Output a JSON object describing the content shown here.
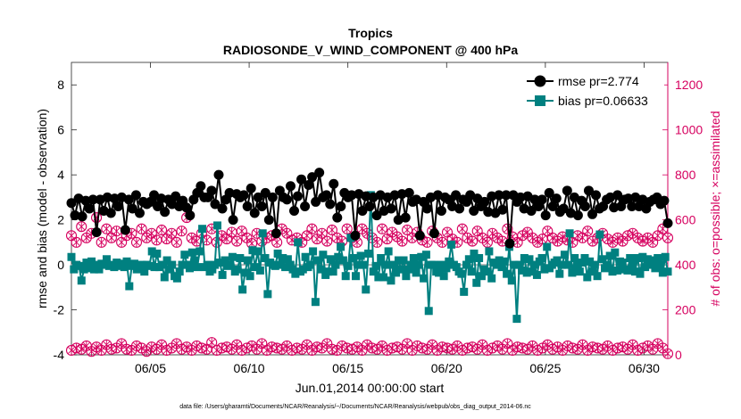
{
  "chart_data": {
    "type": "line",
    "title": "Tropics",
    "subtitle": "RADIOSONDE_V_WIND_COMPONENT @ 400 hPa",
    "xlabel": "Jun.01,2014 00:00:00 start",
    "ylabel": "rmse and bias (model - observation)",
    "y2label": "# of obs: o=possible; ×=assimilated",
    "footnote": "data file: /Users/gharamti/Documents/NCAR/Reanalysis/~/Documents/NCAR/Reanalysis/webpub/obs_diag_output_2014-06.nc",
    "xlim": [
      1.0,
      31.2
    ],
    "ylim": [
      -4,
      9
    ],
    "y2lim": [
      0,
      1300
    ],
    "x_ticks": [
      5,
      10,
      15,
      20,
      25,
      30
    ],
    "x_tick_labels": [
      "06/05",
      "06/10",
      "06/15",
      "06/20",
      "06/25",
      "06/30"
    ],
    "y_ticks": [
      -4,
      -2,
      0,
      2,
      4,
      6,
      8
    ],
    "y_tick_labels": [
      "-4",
      "-2",
      "0",
      "2",
      "4",
      "6",
      "8"
    ],
    "y2_ticks": [
      0,
      200,
      400,
      600,
      800,
      1000,
      1200
    ],
    "y2_tick_labels": [
      "0",
      "200",
      "400",
      "600",
      "800",
      "1000",
      "1200"
    ],
    "legend": [
      "rmse pr=2.774",
      "bias pr=0.06633"
    ],
    "legend_position": "top-right",
    "colors": {
      "rmse": "#000000",
      "bias": "#008080",
      "counts": "#d6005f",
      "zero_line": "#b3b3b3"
    },
    "series": [
      {
        "name": "rmse",
        "values": [
          2.75,
          2.2,
          2.95,
          2.15,
          2.85,
          2.5,
          2.9,
          1.45,
          2.9,
          2.4,
          3.0,
          2.3,
          2.95,
          2.6,
          3.0,
          1.55,
          2.9,
          2.5,
          3.1,
          2.3,
          2.8,
          2.7,
          2.8,
          3.1,
          2.6,
          2.95,
          2.35,
          2.9,
          2.7,
          3.05,
          2.6,
          2.85,
          2.55,
          2.2,
          2.9,
          3.2,
          3.5,
          3.0,
          3.0,
          3.3,
          2.7,
          4.0,
          2.5,
          2.9,
          3.2,
          2.0,
          3.15,
          3.0,
          3.1,
          2.6,
          3.4,
          2.3,
          3.0,
          2.6,
          3.2,
          2.0,
          3.0,
          1.4,
          3.3,
          3.0,
          2.9,
          3.5,
          2.4,
          3.05,
          3.8,
          2.6,
          3.55,
          3.9,
          2.8,
          4.1,
          3.0,
          3.1,
          2.7,
          3.6,
          2.1,
          2.6,
          3.2,
          3.0,
          3.1,
          1.3,
          3.15,
          2.4,
          3.05,
          2.6,
          3.0,
          2.2,
          3.1,
          2.4,
          3.0,
          2.5,
          3.1,
          2.0,
          3.15,
          2.1,
          3.2,
          2.8,
          2.9,
          1.3,
          2.8,
          2.5,
          3.0,
          1.4,
          3.1,
          2.4,
          3.0,
          2.9,
          2.6,
          3.1,
          2.5,
          2.9,
          2.8,
          3.1,
          2.4,
          2.95,
          2.6,
          2.8,
          2.35,
          3.05,
          2.3,
          3.1,
          2.45,
          3.1,
          0.95,
          3.1,
          2.8,
          3.0,
          2.5,
          3.05,
          2.4,
          2.9,
          2.6,
          2.9,
          2.2,
          3.2,
          2.6,
          2.95,
          2.35,
          2.5,
          3.3,
          2.3,
          3.0,
          2.2,
          2.85,
          2.6,
          3.3,
          2.25,
          3.1,
          2.5,
          2.6,
          2.9,
          3.0,
          2.55,
          3.1,
          2.6,
          2.9,
          2.95,
          2.6,
          3.0,
          2.6,
          2.9,
          2.5,
          2.8,
          2.9,
          3.0,
          2.7,
          2.85,
          1.85
        ]
      },
      {
        "name": "bias",
        "values": [
          0.35,
          -0.2,
          0.0,
          -0.05,
          -0.7,
          -0.2,
          0.1,
          -0.15,
          0.15,
          -0.2,
          0.0,
          -0.2,
          0.05,
          0.0,
          0.25,
          -0.05,
          0.0,
          -0.1,
          0.1,
          -0.05,
          0.05,
          -0.1,
          0.15,
          -0.95,
          -0.05,
          0.05,
          -0.2,
          -0.1,
          0.0,
          -0.3,
          0.0,
          -0.05,
          0.6,
          -0.1,
          0.5,
          -0.1,
          0.0,
          -0.55,
          0.2,
          -0.2,
          0.0,
          -0.5,
          -0.6,
          -0.3,
          0.0,
          0.45,
          0.0,
          -0.15,
          0.55,
          0.2,
          -0.1,
          0.6,
          1.6,
          -0.1,
          0.0,
          -0.3,
          -0.2,
          0.0,
          1.75,
          0.1,
          -0.45,
          0.2,
          -0.05,
          0.0,
          0.35,
          -0.3,
          -0.2,
          0.3,
          -1.1,
          -0.35,
          0.2,
          -0.5,
          0.65,
          -0.1,
          0.6,
          -0.25,
          1.4,
          0.3,
          -1.3,
          0.1,
          0.0,
          -0.05,
          0.5,
          0.0,
          0.3,
          -0.1,
          0.25,
          0.0,
          -0.2,
          -0.4,
          1.0,
          -0.3,
          -0.2,
          0.35,
          -0.1,
          0.0,
          0.6,
          -1.65,
          0.2,
          -0.2,
          0.45,
          -0.45,
          -0.3,
          0.25,
          -0.3,
          0.0,
          0.35,
          0.8,
          0.2,
          -0.5,
          -0.05,
          1.2,
          0.3,
          -0.5,
          0.0,
          0.4,
          0.0,
          -1.1,
          0.5,
          3.1,
          -0.3,
          -0.05,
          -0.55,
          0.3,
          -0.55,
          0.0,
          0.6,
          -0.7,
          0.0,
          -0.35,
          0.2,
          -0.2,
          0.2,
          -0.5,
          -0.2,
          0.0,
          0.3,
          -0.35,
          0.0,
          0.35,
          -0.6,
          0.45,
          -2.05,
          0.0,
          0.0,
          -0.3,
          -0.35,
          0.0,
          -0.5,
          -0.15,
          0.15,
          0.9,
          0.0,
          -0.1,
          -0.3,
          -0.4,
          -1.2,
          0.0,
          0.25,
          -0.3,
          0.5,
          -0.8,
          0.3,
          -0.5,
          -0.2,
          -0.3,
          0.6,
          -0.6,
          0.1,
          0.0,
          0.2,
          -0.1,
          0.15,
          -0.4,
          0.8,
          -0.7,
          0.0,
          -2.4,
          0.0,
          -0.25,
          0.3,
          -0.35,
          0.25,
          -0.3,
          0.0,
          -0.45,
          0.15,
          0.3,
          -0.2,
          0.8,
          -0.15,
          0.0,
          0.1,
          0.2,
          -0.4,
          0.0,
          0.45,
          0.0,
          1.4,
          -0.35,
          0.3,
          0.0,
          -0.3,
          0.1,
          0.3,
          -0.55,
          0.15,
          -0.3,
          0.0,
          -0.5,
          1.35,
          0.25,
          -0.15,
          0.0,
          0.4,
          -0.3,
          0.55,
          -0.25,
          0.15,
          0.1,
          -0.2,
          -0.25,
          0.3,
          0.0,
          -0.3,
          0.3,
          -0.4,
          0.35,
          -0.1,
          0.25,
          0.0,
          0.2,
          -0.15,
          0.3,
          0.0,
          -0.35,
          0.35,
          -0.3
        ]
      },
      {
        "name": "possible_obs_count",
        "values": [
          530,
          500,
          570,
          520,
          540,
          610,
          500,
          560,
          520,
          550,
          500,
          530,
          540,
          500,
          560,
          520,
          540,
          510,
          555,
          515,
          540,
          500,
          550,
          610,
          520,
          505,
          540,
          510,
          560,
          500,
          530,
          515,
          545,
          505,
          550,
          520,
          495,
          540,
          505,
          520,
          530,
          500,
          560,
          540,
          510,
          520,
          500,
          530,
          560,
          515,
          540,
          505,
          555,
          520,
          505,
          560,
          520,
          500,
          560,
          540,
          520,
          500,
          560,
          515,
          545,
          525,
          505,
          555,
          520,
          545,
          510,
          500,
          550,
          520,
          500,
          545,
          515,
          500,
          560,
          520,
          505,
          550,
          520,
          500,
          540,
          520,
          505,
          560,
          525,
          500,
          530,
          545,
          520,
          500,
          515,
          550,
          520,
          505,
          525,
          510,
          500,
          530,
          520,
          550,
          505,
          520,
          540,
          515,
          500,
          520,
          505,
          530,
          540,
          520,
          505,
          520,
          500,
          530,
          560,
          520
        ]
      },
      {
        "name": "assimilated_obs_count",
        "values": [
          20,
          30,
          25,
          40,
          15,
          35,
          20,
          45,
          25,
          30,
          50,
          25,
          20,
          40,
          30,
          15,
          35,
          25,
          45,
          20,
          30,
          50,
          25,
          35,
          20,
          40,
          30,
          25,
          55,
          20,
          30,
          35,
          25,
          45,
          20,
          30,
          40,
          25,
          50,
          20,
          35,
          30,
          25,
          40,
          20,
          30,
          25,
          45,
          20,
          35,
          30,
          50,
          25,
          20,
          40,
          30,
          25,
          35,
          20,
          45,
          30,
          25,
          40,
          20,
          30,
          35,
          25,
          50,
          20,
          40,
          30,
          25,
          45,
          20,
          35,
          30,
          25,
          40,
          20,
          30,
          35,
          25,
          45,
          20,
          30,
          40,
          25,
          50,
          20,
          35,
          30,
          25,
          40,
          20,
          30,
          45,
          25,
          35,
          20,
          40,
          30,
          25,
          45,
          20,
          35,
          30,
          25,
          40,
          20,
          30,
          35,
          25,
          45,
          20,
          30,
          40,
          25,
          50,
          30,
          5
        ]
      }
    ]
  }
}
